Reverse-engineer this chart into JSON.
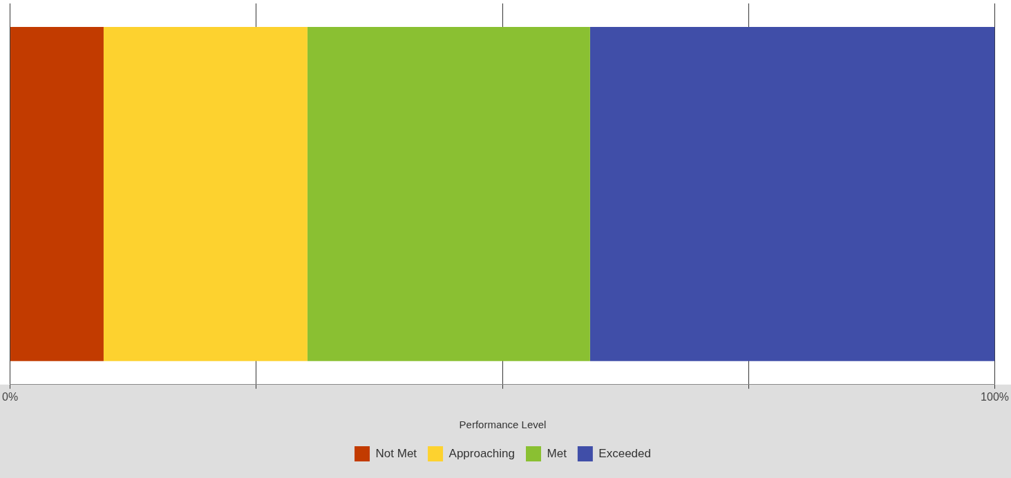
{
  "chart_data": {
    "type": "bar",
    "orientation": "horizontal",
    "stacked": true,
    "categories": [
      null
    ],
    "series": [
      {
        "name": "Not Met",
        "color": "#c23b00",
        "values": [
          9.5
        ]
      },
      {
        "name": "Approaching",
        "color": "#fdd22f",
        "values": [
          20.7
        ]
      },
      {
        "name": "Met",
        "color": "#8ac032",
        "values": [
          28.7
        ]
      },
      {
        "name": "Exceeded",
        "color": "#404ea8",
        "values": [
          41.1
        ]
      }
    ],
    "xlim": [
      0,
      100
    ],
    "xticks": [
      {
        "value": 0,
        "label": "0%"
      },
      {
        "value": 25,
        "label": null
      },
      {
        "value": 50,
        "label": null
      },
      {
        "value": 75,
        "label": null
      },
      {
        "value": 100,
        "label": "100%"
      }
    ],
    "grid": "x",
    "tick_labels": "x",
    "legend": "bottom",
    "legend_title": "Performance Level"
  }
}
